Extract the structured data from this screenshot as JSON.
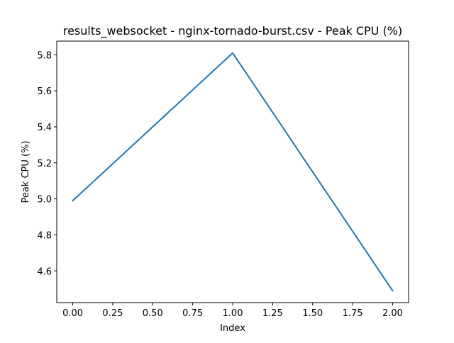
{
  "chart_data": {
    "type": "line",
    "title": "results_websocket - nginx-tornado-burst.csv - Peak CPU (%)",
    "xlabel": "Index",
    "ylabel": "Peak CPU (%)",
    "x": [
      0,
      1,
      2
    ],
    "series": [
      {
        "values": [
          4.99,
          5.81,
          4.49
        ],
        "color": "#1f77b4"
      }
    ],
    "xlim": [
      -0.1,
      2.1
    ],
    "ylim": [
      4.424,
      5.876
    ],
    "xticks": [
      0.0,
      0.25,
      0.5,
      0.75,
      1.0,
      1.25,
      1.5,
      1.75,
      2.0
    ],
    "xtick_labels": [
      "0.00",
      "0.25",
      "0.50",
      "0.75",
      "1.00",
      "1.25",
      "1.50",
      "1.75",
      "2.00"
    ],
    "yticks": [
      4.6,
      4.8,
      5.0,
      5.2,
      5.4,
      5.6,
      5.8
    ],
    "ytick_labels": [
      "4.6",
      "4.8",
      "5.0",
      "5.2",
      "5.4",
      "5.6",
      "5.8"
    ],
    "grid": false,
    "legend": false
  }
}
